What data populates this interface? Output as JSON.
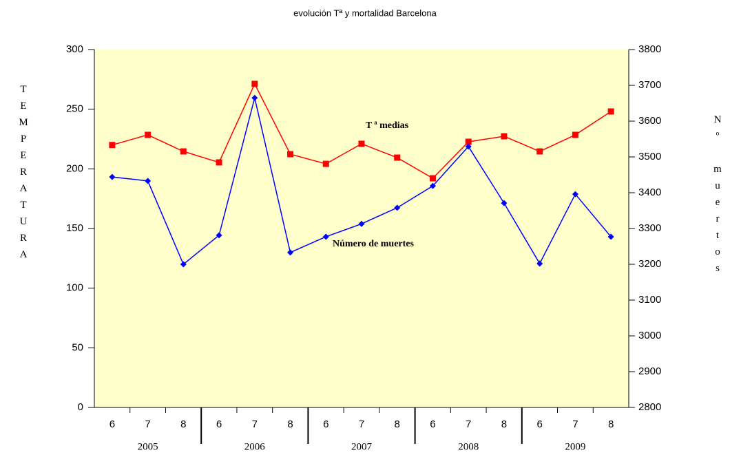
{
  "chart_data": {
    "type": "line",
    "title": "evolución Tª y mortalidad Barcelona",
    "categories": [
      "6",
      "7",
      "8",
      "6",
      "7",
      "8",
      "6",
      "7",
      "8",
      "6",
      "7",
      "8",
      "6",
      "7",
      "8"
    ],
    "x_groups": [
      "2005",
      "2006",
      "2007",
      "2008",
      "2009"
    ],
    "y_label": "TEMPERATURA",
    "y2_label": "Nº muertos",
    "background": "#ffffcc",
    "series": [
      {
        "name": "T ª medias",
        "color": "#ff0000",
        "marker": "square",
        "values": [
          220,
          228.5,
          214.6,
          205.4,
          271.2,
          212.3,
          204.2,
          221,
          209.4,
          192.1,
          222.7,
          227.3,
          214.6,
          228.5,
          248.1
        ]
      },
      {
        "name": "Número de muertes",
        "color": "#0000ff",
        "marker": "diamond",
        "axis": "y2",
        "values": [
          3444,
          3433,
          3200,
          3281,
          3665,
          3233,
          3277,
          3313,
          3358,
          3419,
          3529,
          3371,
          3202,
          3396,
          3277
        ]
      }
    ],
    "ylim": [
      0,
      300
    ],
    "yticks": [
      0,
      50,
      100,
      150,
      200,
      250,
      300
    ],
    "y2lim": [
      2800,
      3800
    ],
    "y2ticks": [
      2800,
      2900,
      3000,
      3100,
      3200,
      3300,
      3400,
      3500,
      3600,
      3700,
      3800
    ]
  }
}
